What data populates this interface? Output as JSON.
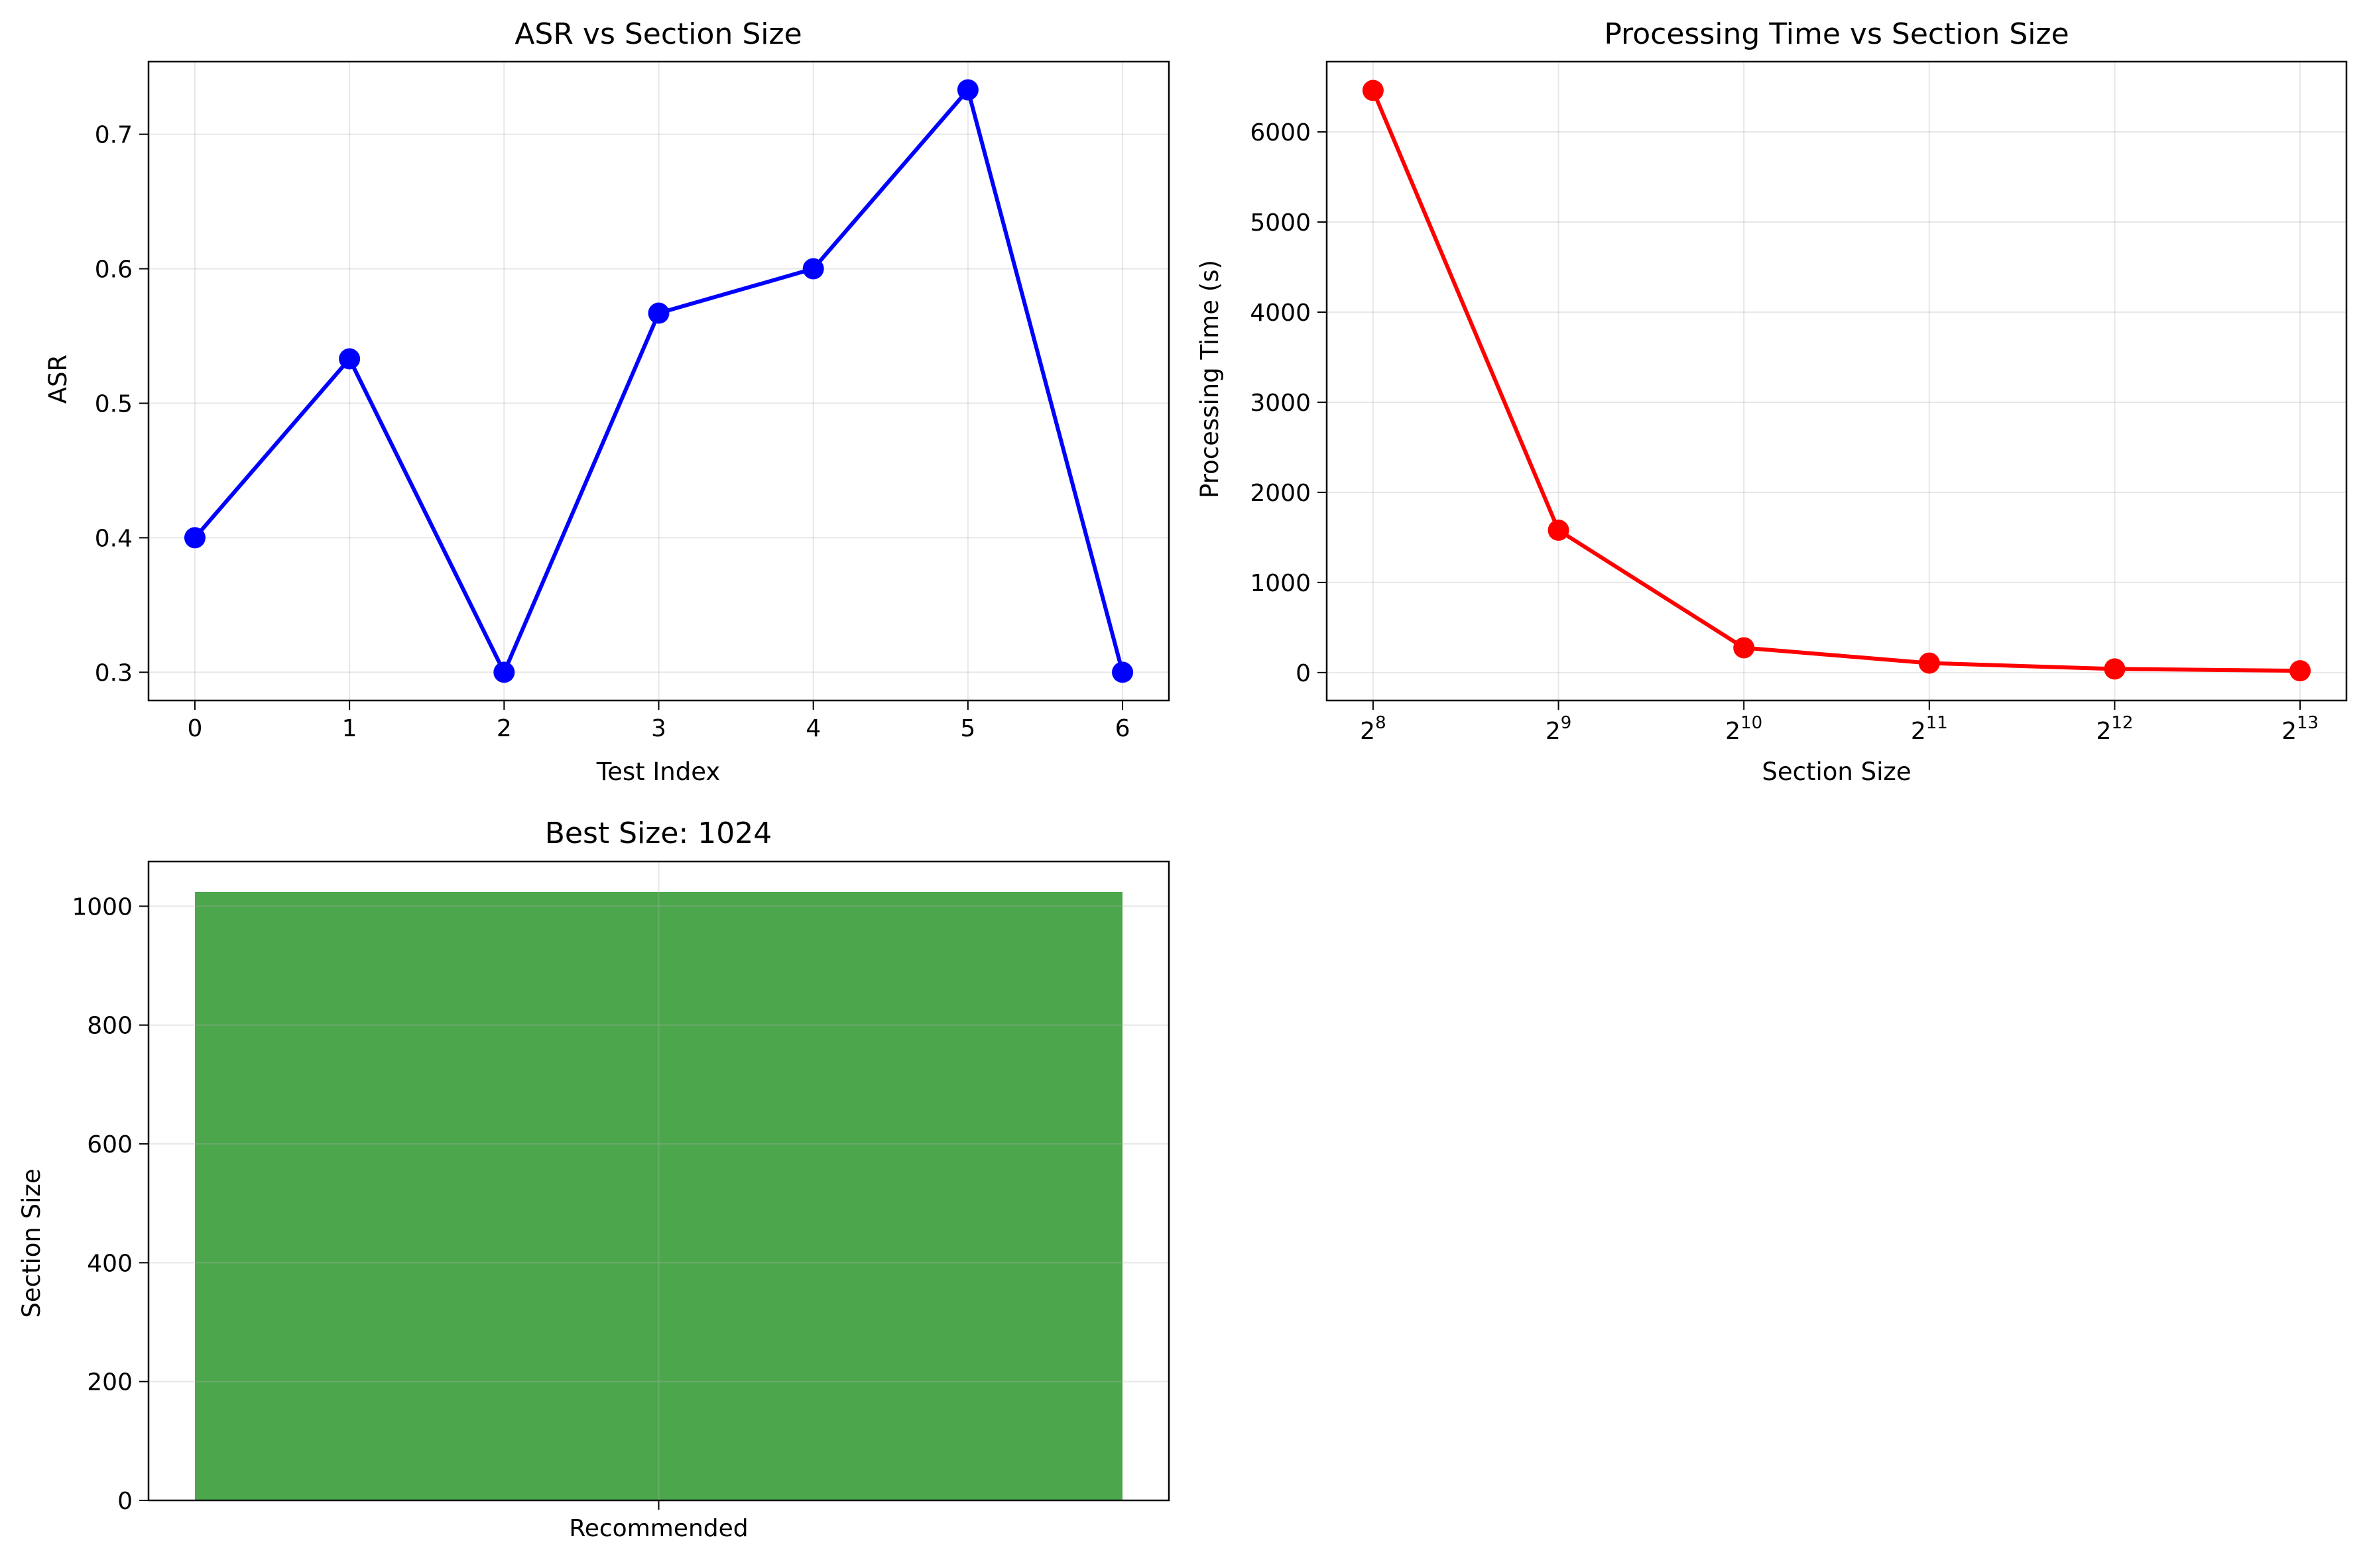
{
  "chart_data": [
    {
      "type": "line",
      "title": "ASR vs Section Size",
      "xlabel": "Test Index",
      "ylabel": "ASR",
      "x": [
        0,
        1,
        2,
        3,
        4,
        5,
        6
      ],
      "xticks": [
        "0",
        "1",
        "2",
        "3",
        "4",
        "5",
        "6"
      ],
      "yticks": [
        "0.3",
        "0.4",
        "0.5",
        "0.6",
        "0.7"
      ],
      "xlim": [
        -0.3,
        6.3
      ],
      "ylim": [
        0.279,
        0.754
      ],
      "grid": true,
      "series": [
        {
          "values": [
            0.4,
            0.533,
            0.3,
            0.567,
            0.6,
            0.733,
            0.3
          ],
          "color": "#0000ff",
          "marker": "circle"
        }
      ]
    },
    {
      "type": "line",
      "title": "Processing Time vs Section Size",
      "xlabel": "Section Size",
      "ylabel": "Processing Time (s)",
      "xscale": "log2",
      "x": [
        256,
        512,
        1024,
        2048,
        4096,
        8192
      ],
      "xticks": [
        {
          "base": "2",
          "exp": "8"
        },
        {
          "base": "2",
          "exp": "9"
        },
        {
          "base": "2",
          "exp": "10"
        },
        {
          "base": "2",
          "exp": "11"
        },
        {
          "base": "2",
          "exp": "12"
        },
        {
          "base": "2",
          "exp": "13"
        }
      ],
      "yticks": [
        "0",
        "1000",
        "2000",
        "3000",
        "4000",
        "5000",
        "6000"
      ],
      "ylim": [
        -310,
        6780
      ],
      "grid": true,
      "series": [
        {
          "values": [
            6460,
            1580,
            275,
            105,
            40,
            20
          ],
          "color": "#ff0000",
          "marker": "circle"
        }
      ]
    },
    {
      "type": "bar",
      "title": "Best Size: 1024",
      "xlabel": "",
      "ylabel": "Section Size",
      "categories": [
        "Recommended"
      ],
      "values": [
        1024
      ],
      "yticks": [
        "0",
        "200",
        "400",
        "600",
        "800",
        "1000"
      ],
      "ylim": [
        0,
        1075.2
      ],
      "grid": true,
      "color": "#4ca64c"
    }
  ]
}
